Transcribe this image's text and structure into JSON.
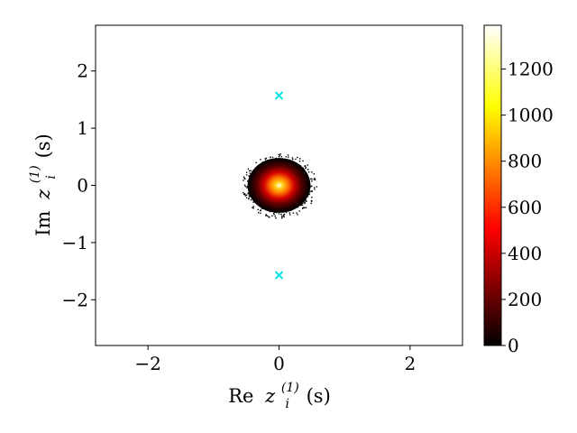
{
  "chart_data": {
    "type": "heatmap",
    "title": "",
    "xlabel": {
      "prefix": "Re",
      "var": "z",
      "sub": "i",
      "sup": "(1)",
      "arg": "(s)"
    },
    "ylabel": {
      "prefix": "Im",
      "var": "z",
      "sub": "i",
      "sup": "(1)",
      "arg": "(s)"
    },
    "xlim": [
      -2.8,
      2.8
    ],
    "ylim": [
      -2.8,
      2.8
    ],
    "x_ticks": [
      -2,
      0,
      2
    ],
    "x_tick_labels": [
      "−2",
      "0",
      "2"
    ],
    "y_ticks": [
      -2,
      -1,
      0,
      1,
      2
    ],
    "y_tick_labels": [
      "−2",
      "−1",
      "0",
      "1",
      "2"
    ],
    "grid": false,
    "colormap": "hot",
    "colorbar": {
      "min": 0,
      "max": 1390,
      "ticks": [
        0,
        200,
        400,
        600,
        800,
        1000,
        1200
      ],
      "tick_labels": [
        "0",
        "200",
        "400",
        "600",
        "800",
        "1000",
        "1200"
      ]
    },
    "density": {
      "center": [
        0,
        0
      ],
      "radius": 0.5,
      "peak": 1390
    },
    "markers": {
      "shape": "x",
      "color": "#00e5e5",
      "points": [
        [
          0,
          1.57
        ],
        [
          0,
          -1.57
        ]
      ]
    }
  }
}
